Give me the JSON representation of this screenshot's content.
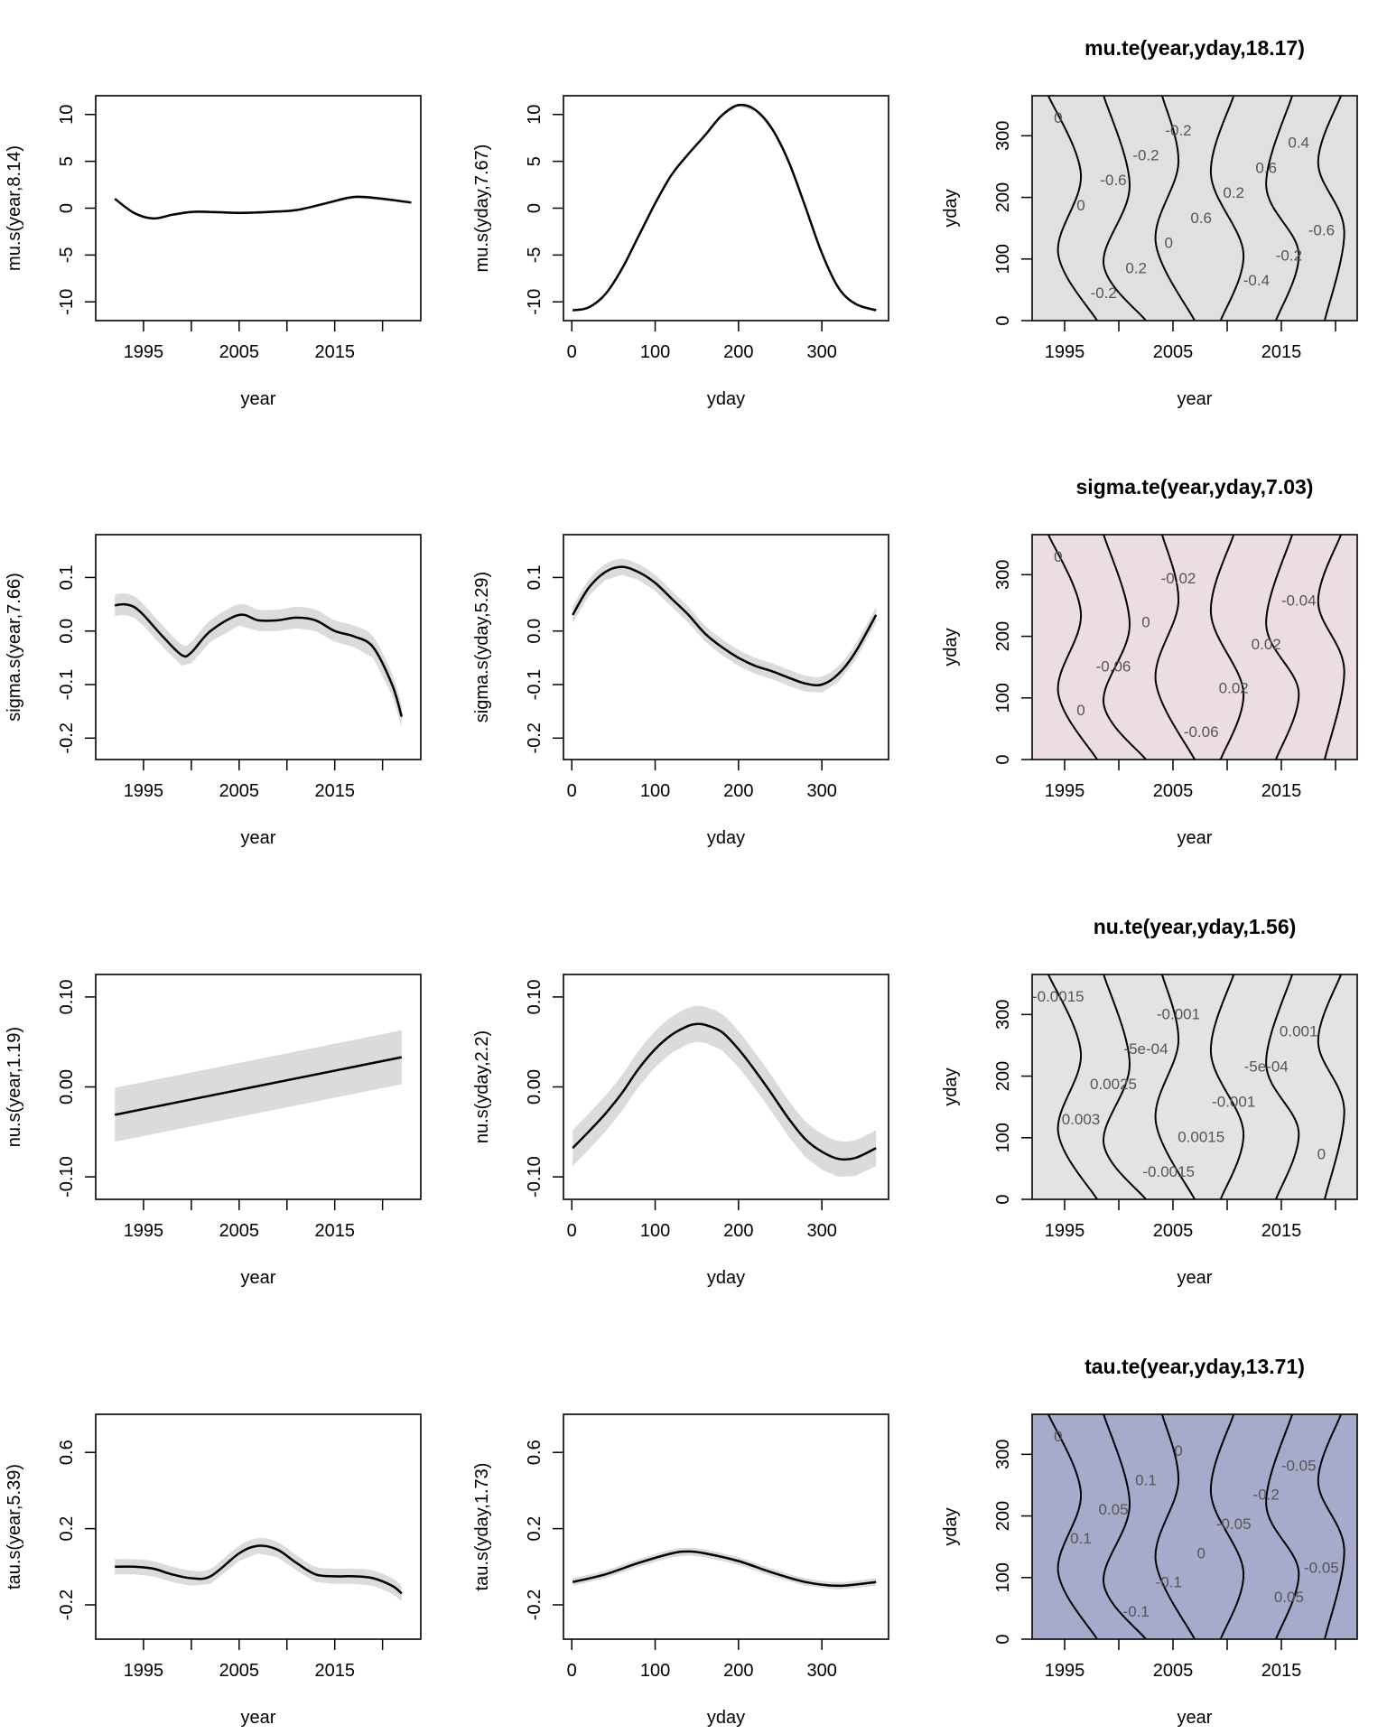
{
  "chart_data": [
    {
      "id": "mu_year",
      "type": "line",
      "xlabel": "year",
      "ylabel": "mu.s(year,8.14)",
      "xlim": [
        1990,
        2024
      ],
      "ylim": [
        -12,
        12
      ],
      "xticks": [
        1995,
        2000,
        2005,
        2010,
        2015,
        2020
      ],
      "xtick_labels": [
        "1995",
        "",
        "2005",
        "",
        "2015",
        ""
      ],
      "yticks": [
        -10,
        -5,
        0,
        5,
        10
      ],
      "ytick_labels": [
        "-10",
        "-5",
        "0",
        "5",
        "10"
      ],
      "band": 0.15,
      "x": [
        1992,
        1994,
        1996,
        1998,
        2000,
        2002,
        2005,
        2008,
        2011,
        2014,
        2017,
        2020,
        2023
      ],
      "y": [
        1.0,
        -0.5,
        -1.1,
        -0.7,
        -0.4,
        -0.4,
        -0.5,
        -0.4,
        -0.2,
        0.5,
        1.2,
        1.0,
        0.6
      ]
    },
    {
      "id": "mu_yday",
      "type": "line",
      "xlabel": "yday",
      "ylabel": "mu.s(yday,7.67)",
      "xlim": [
        -10,
        380
      ],
      "ylim": [
        -12,
        12
      ],
      "xticks": [
        0,
        100,
        200,
        300
      ],
      "xtick_labels": [
        "0",
        "100",
        "200",
        "300"
      ],
      "yticks": [
        -10,
        -5,
        0,
        5,
        10
      ],
      "ytick_labels": [
        "-10",
        "-5",
        "0",
        "5",
        "10"
      ],
      "band": 0.15,
      "x": [
        1,
        20,
        40,
        60,
        80,
        100,
        120,
        140,
        160,
        180,
        200,
        220,
        240,
        260,
        280,
        300,
        320,
        340,
        365
      ],
      "y": [
        -10.9,
        -10.6,
        -9.2,
        -6.5,
        -3.0,
        0.5,
        3.6,
        5.8,
        7.8,
        9.9,
        11.0,
        10.5,
        8.5,
        5.0,
        0.2,
        -4.8,
        -8.5,
        -10.2,
        -10.9
      ]
    },
    {
      "id": "mu_te",
      "type": "heatmap",
      "title": "mu.te(year,yday,18.17)",
      "xlabel": "year",
      "ylabel": "yday",
      "xlim": [
        1992,
        2022
      ],
      "ylim": [
        0,
        365
      ],
      "xticks": [
        1995,
        2000,
        2005,
        2010,
        2015,
        2020
      ],
      "xtick_labels": [
        "1995",
        "",
        "2005",
        "",
        "2015",
        ""
      ],
      "yticks": [
        0,
        100,
        200,
        300
      ],
      "ytick_labels": [
        "0",
        "100",
        "200",
        "300"
      ],
      "fill": "#e0e0e0",
      "contour_labels": [
        "0",
        "-0.2",
        "0.4",
        "-0.2",
        "0.6",
        "-0.6",
        "0.2",
        "0",
        "0.6",
        "-0.6",
        "0",
        "-0.2",
        "0.2",
        "-0.4",
        "-0.2"
      ]
    },
    {
      "id": "sigma_year",
      "type": "line",
      "xlabel": "year",
      "ylabel": "sigma.s(year,7.66)",
      "xlim": [
        1990,
        2024
      ],
      "ylim": [
        -0.24,
        0.18
      ],
      "xticks": [
        1995,
        2000,
        2005,
        2010,
        2015,
        2020
      ],
      "xtick_labels": [
        "1995",
        "",
        "2005",
        "",
        "2015",
        ""
      ],
      "yticks": [
        -0.2,
        -0.1,
        0.0,
        0.1
      ],
      "ytick_labels": [
        "-0.2",
        "-0.1",
        "0.0",
        "0.1"
      ],
      "band": 0.02,
      "x": [
        1992,
        1993,
        1994,
        1995,
        1997,
        1999,
        2000,
        2002,
        2005,
        2007,
        2009,
        2011,
        2013,
        2015,
        2017,
        2019,
        2021,
        2022
      ],
      "y": [
        0.048,
        0.05,
        0.045,
        0.03,
        -0.01,
        -0.045,
        -0.04,
        0.0,
        0.03,
        0.02,
        0.02,
        0.025,
        0.02,
        0.0,
        -0.01,
        -0.03,
        -0.1,
        -0.16
      ]
    },
    {
      "id": "sigma_yday",
      "type": "line",
      "xlabel": "yday",
      "ylabel": "sigma.s(yday,5.29)",
      "xlim": [
        -10,
        380
      ],
      "ylim": [
        -0.24,
        0.18
      ],
      "xticks": [
        0,
        100,
        200,
        300
      ],
      "xtick_labels": [
        "0",
        "100",
        "200",
        "300"
      ],
      "yticks": [
        -0.2,
        -0.1,
        0.0,
        0.1
      ],
      "ytick_labels": [
        "-0.2",
        "-0.1",
        "0.0",
        "0.1"
      ],
      "band": 0.015,
      "x": [
        1,
        20,
        40,
        60,
        80,
        100,
        120,
        140,
        160,
        180,
        200,
        220,
        240,
        260,
        280,
        300,
        320,
        340,
        365
      ],
      "y": [
        0.03,
        0.08,
        0.11,
        0.12,
        0.11,
        0.09,
        0.06,
        0.03,
        -0.005,
        -0.03,
        -0.05,
        -0.065,
        -0.075,
        -0.087,
        -0.098,
        -0.1,
        -0.08,
        -0.04,
        0.03
      ]
    },
    {
      "id": "sigma_te",
      "type": "heatmap",
      "title": "sigma.te(year,yday,7.03)",
      "xlabel": "year",
      "ylabel": "yday",
      "xlim": [
        1992,
        2022
      ],
      "ylim": [
        0,
        365
      ],
      "xticks": [
        1995,
        2000,
        2005,
        2010,
        2015,
        2020
      ],
      "xtick_labels": [
        "1995",
        "",
        "2005",
        "",
        "2015",
        ""
      ],
      "yticks": [
        0,
        100,
        200,
        300
      ],
      "ytick_labels": [
        "0",
        "100",
        "200",
        "300"
      ],
      "fill": "#ecdde0",
      "contour_labels": [
        "0",
        "-0.02",
        "-0.04",
        "0",
        "0.02",
        "-0.06",
        "0.02",
        "0",
        "-0.06"
      ]
    },
    {
      "id": "nu_year",
      "type": "line",
      "xlabel": "year",
      "ylabel": "nu.s(year,1.19)",
      "xlim": [
        1990,
        2024
      ],
      "ylim": [
        -0.125,
        0.125
      ],
      "xticks": [
        1995,
        2000,
        2005,
        2010,
        2015,
        2020
      ],
      "xtick_labels": [
        "1995",
        "",
        "2005",
        "",
        "2015",
        ""
      ],
      "yticks": [
        -0.1,
        0.0,
        0.1
      ],
      "ytick_labels": [
        "-0.10",
        "0.00",
        "0.10"
      ],
      "band": 0.03,
      "x": [
        1992,
        2022
      ],
      "y": [
        -0.031,
        0.033
      ]
    },
    {
      "id": "nu_yday",
      "type": "line",
      "xlabel": "yday",
      "ylabel": "nu.s(yday,2.2)",
      "xlim": [
        -10,
        380
      ],
      "ylim": [
        -0.125,
        0.125
      ],
      "xticks": [
        0,
        100,
        200,
        300
      ],
      "xtick_labels": [
        "0",
        "100",
        "200",
        "300"
      ],
      "yticks": [
        -0.1,
        0.0,
        0.1
      ],
      "ytick_labels": [
        "-0.10",
        "0.00",
        "0.10"
      ],
      "band": 0.02,
      "x": [
        1,
        20,
        40,
        60,
        80,
        100,
        120,
        140,
        150,
        160,
        180,
        200,
        220,
        240,
        260,
        280,
        300,
        320,
        340,
        365
      ],
      "y": [
        -0.068,
        -0.05,
        -0.03,
        -0.007,
        0.02,
        0.042,
        0.058,
        0.068,
        0.07,
        0.069,
        0.061,
        0.042,
        0.018,
        -0.008,
        -0.035,
        -0.058,
        -0.072,
        -0.08,
        -0.079,
        -0.068
      ]
    },
    {
      "id": "nu_te",
      "type": "heatmap",
      "title": "nu.te(year,yday,1.56)",
      "xlabel": "year",
      "ylabel": "yday",
      "xlim": [
        1992,
        2022
      ],
      "ylim": [
        0,
        365
      ],
      "xticks": [
        1995,
        2000,
        2005,
        2010,
        2015,
        2020
      ],
      "xtick_labels": [
        "1995",
        "",
        "2005",
        "",
        "2015",
        ""
      ],
      "yticks": [
        0,
        100,
        200,
        300
      ],
      "ytick_labels": [
        "0",
        "100",
        "200",
        "300"
      ],
      "fill": "#e3e3e3",
      "contour_labels": [
        "-0.0015",
        "-0.001",
        "0.001",
        "-5e-04",
        "-5e-04",
        "0.0025",
        "-0.001",
        "0.003",
        "0.0015",
        "0",
        "-0.0015"
      ]
    },
    {
      "id": "tau_year",
      "type": "line",
      "xlabel": "year",
      "ylabel": "tau.s(year,5.39)",
      "xlim": [
        1990,
        2024
      ],
      "ylim": [
        -0.38,
        0.8
      ],
      "xticks": [
        1995,
        2000,
        2005,
        2010,
        2015,
        2020
      ],
      "xtick_labels": [
        "1995",
        "",
        "2005",
        "",
        "2015",
        ""
      ],
      "yticks": [
        -0.2,
        0.2,
        0.6
      ],
      "ytick_labels": [
        "-0.2",
        "0.2",
        "0.6"
      ],
      "band": 0.04,
      "x": [
        1992,
        1994,
        1996,
        1998,
        2000,
        2002,
        2005,
        2007,
        2009,
        2011,
        2013,
        2015,
        2017,
        2019,
        2021,
        2022
      ],
      "y": [
        0.0,
        0.0,
        -0.01,
        -0.04,
        -0.06,
        -0.05,
        0.07,
        0.11,
        0.09,
        0.02,
        -0.04,
        -0.05,
        -0.05,
        -0.06,
        -0.1,
        -0.14
      ]
    },
    {
      "id": "tau_yday",
      "type": "line",
      "xlabel": "yday",
      "ylabel": "tau.s(yday,1.73)",
      "xlim": [
        -10,
        380
      ],
      "ylim": [
        -0.38,
        0.8
      ],
      "xticks": [
        0,
        100,
        200,
        300
      ],
      "xtick_labels": [
        "0",
        "100",
        "200",
        "300"
      ],
      "yticks": [
        -0.2,
        0.2,
        0.6
      ],
      "ytick_labels": [
        "-0.2",
        "0.2",
        "0.6"
      ],
      "band": 0.02,
      "x": [
        1,
        40,
        80,
        120,
        140,
        160,
        200,
        240,
        280,
        320,
        365
      ],
      "y": [
        -0.08,
        -0.04,
        0.02,
        0.07,
        0.08,
        0.07,
        0.03,
        -0.03,
        -0.08,
        -0.1,
        -0.08
      ]
    },
    {
      "id": "tau_te",
      "type": "heatmap",
      "title": "tau.te(year,yday,13.71)",
      "xlabel": "year",
      "ylabel": "yday",
      "xlim": [
        1992,
        2022
      ],
      "ylim": [
        0,
        365
      ],
      "xticks": [
        1995,
        2000,
        2005,
        2010,
        2015,
        2020
      ],
      "xtick_labels": [
        "1995",
        "",
        "2005",
        "",
        "2015",
        ""
      ],
      "yticks": [
        0,
        100,
        200,
        300
      ],
      "ytick_labels": [
        "0",
        "100",
        "200",
        "300"
      ],
      "fill": "#a6abcc",
      "contour_labels": [
        "0",
        "0",
        "-0.05",
        "0.1",
        "-0.2",
        "0.05",
        "-0.05",
        "0.1",
        "0",
        "-0.05",
        "-0.1",
        "0.05",
        "-0.1"
      ]
    }
  ]
}
